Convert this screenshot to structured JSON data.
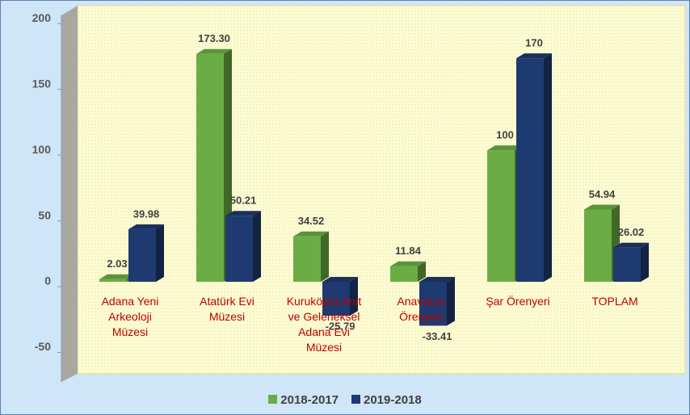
{
  "chart_data": {
    "type": "bar",
    "categories": [
      "Adana Yeni Arkeoloji Müzesi",
      "Atatürk Evi Müzesi",
      "Kuruköprü Anıt ve Geleneksel Adana Evi Müzesi",
      "Anavarza Örenyeri",
      "Şar Örenyeri",
      "TOPLAM"
    ],
    "series": [
      {
        "name": "2018-2017",
        "color": "#6aad45",
        "values": [
          2.03,
          173.3,
          34.52,
          11.84,
          100,
          54.94
        ],
        "value_labels": [
          "2.03",
          "173.30",
          "34.52",
          "11.84",
          "100",
          "54.94"
        ]
      },
      {
        "name": "2019-2018",
        "color": "#1f3a70",
        "values": [
          39.98,
          50.21,
          -25.79,
          -33.41,
          170,
          26.02
        ],
        "value_labels": [
          "39.98",
          "50.21",
          "-25.79",
          "-33.41",
          "170",
          "26.02"
        ]
      }
    ],
    "ylim": [
      -70,
      210
    ],
    "yticks": [
      -50,
      0,
      50,
      100,
      150,
      200
    ],
    "grid": false,
    "legend": "bottom"
  }
}
